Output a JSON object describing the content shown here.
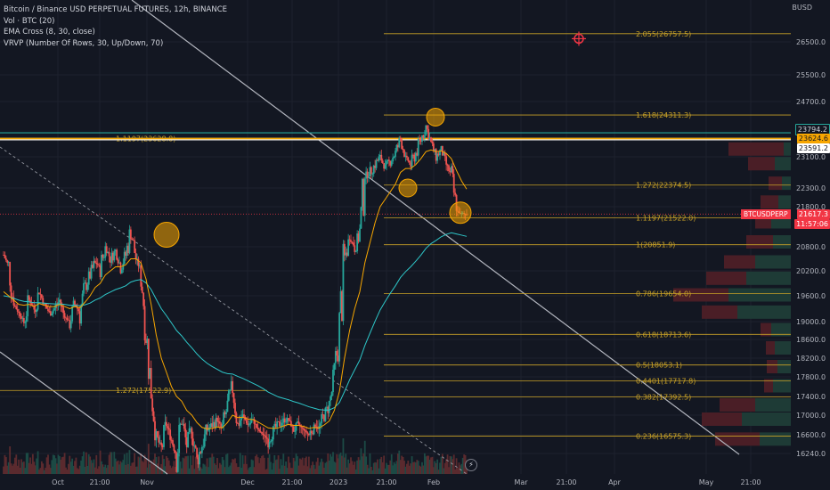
{
  "legend": {
    "title": "Bitcoin / Binance USD PERPETUAL FUTURES, 12h, BINANCE",
    "vol": "Vol · BTC (20)",
    "ema": "EMA Cross (8, 30, close)",
    "vrvp": "VRVP (Number Of Rows, 30, Up/Down, 70)"
  },
  "axis": {
    "unit": "BUSD",
    "y_ticks": [
      "26500.0",
      "25500.0",
      "24700.0",
      "23100.0",
      "22300.0",
      "21800.0",
      "20800.0",
      "20200.0",
      "19600.0",
      "19000.0",
      "18600.0",
      "18200.0",
      "17800.0",
      "17400.0",
      "17000.0",
      "16600.0",
      "16240.0"
    ],
    "x_ticks": [
      "Oct",
      "21:00",
      "Nov",
      "Dec",
      "21:00",
      "2023",
      "21:00",
      "Feb",
      "Mar",
      "21:00",
      "Apr",
      "May",
      "21:00"
    ]
  },
  "price_tags": {
    "top_green": "23794.2",
    "orange": "23624.6",
    "white": "23591.2",
    "symbol": "BTCUSDPERP",
    "last": "21617.3",
    "countdown": "11:57:06"
  },
  "colors": {
    "background": "#131722",
    "up": "#26a69a",
    "down": "#ef5350",
    "fib": "#c9a227",
    "ema_fast": "#f7a600",
    "ema_slow": "#2ec7c9",
    "profile_up": "#1e3b36",
    "profile_down": "#4a1e26"
  },
  "chart_data": {
    "type": "candlestick",
    "symbol": "BTCUSDPERP",
    "timeframe": "12h",
    "ylim": [
      16100,
      27200
    ],
    "fib_levels": [
      {
        "label": "2.055(26757.5)",
        "value": 26757.5
      },
      {
        "label": "1.618(24311.3)",
        "value": 24311.3
      },
      {
        "label": "1.272(22374.5)",
        "value": 22374.5
      },
      {
        "label": "1.1197(21522.0)",
        "value": 21522.0
      },
      {
        "label": "1(20851.9)",
        "value": 20851.9
      },
      {
        "label": "0.786(19654.0)",
        "value": 19654.0
      },
      {
        "label": "0.618(18713.6)",
        "value": 18713.6
      },
      {
        "label": "0.5(18053.1)",
        "value": 18053.1
      },
      {
        "label": "0.4401(17717.8)",
        "value": 17717.8
      },
      {
        "label": "0.382(17392.5)",
        "value": 17392.5
      },
      {
        "label": "0.236(16575.3)",
        "value": 16575.3
      }
    ],
    "left_levels": [
      {
        "label": "1.1197(23628.8)",
        "value": 23628.8
      },
      {
        "label": "1.272(17522.9)",
        "value": 17522.9
      }
    ],
    "horizontal_lines": [
      23794.2,
      23624.6,
      23591.2
    ],
    "last_price": 21617.3,
    "price_path": [
      20600,
      20300,
      19400,
      19200,
      19000,
      19500,
      19300,
      19700,
      19400,
      19200,
      19300,
      19500,
      19100,
      19000,
      19400,
      19200,
      19800,
      20100,
      20400,
      20300,
      20800,
      20500,
      20700,
      20300,
      20600,
      21200,
      20500,
      20200,
      18800,
      17500,
      16600,
      16300,
      16800,
      16500,
      16200,
      16900,
      16400,
      16700,
      16100,
      16400,
      16700,
      16800,
      16900,
      16700,
      17200,
      17600,
      16800,
      17000,
      16800,
      16900,
      16700,
      16600,
      16500,
      16700,
      16800,
      16900,
      16900,
      16700,
      16800,
      16700,
      16600,
      16800,
      16700,
      17000,
      17200,
      17800,
      18800,
      20500,
      21000,
      20800,
      21100,
      22600,
      22700,
      22900,
      23100,
      22800,
      23000,
      23200,
      23600,
      23100,
      22900,
      23200,
      23600,
      24000,
      23500,
      23100,
      23300,
      22900,
      22600,
      21700,
      21600,
      21620
    ],
    "ema_fast": [
      19700,
      19600,
      19500,
      19400,
      19380,
      19400,
      19350,
      19420,
      19380,
      19350,
      19350,
      19400,
      19350,
      19300,
      19350,
      19320,
      19450,
      19600,
      19800,
      19900,
      20100,
      20200,
      20300,
      20300,
      20350,
      20500,
      20500,
      20400,
      20000,
      19400,
      18700,
      18200,
      17900,
      17600,
      17400,
      17300,
      17100,
      17000,
      16850,
      16750,
      16720,
      16730,
      16760,
      16740,
      16850,
      17000,
      16950,
      16960,
      16920,
      16910,
      16860,
      16800,
      16740,
      16730,
      16740,
      16780,
      16810,
      16790,
      16790,
      16770,
      16730,
      16750,
      16740,
      16800,
      16880,
      17100,
      17500,
      18200,
      18800,
      19300,
      19700,
      20400,
      20900,
      21400,
      21800,
      22000,
      22200,
      22400,
      22700,
      22800,
      22800,
      22900,
      23050,
      23250,
      23300,
      23250,
      23270,
      23200,
      23050,
      22750,
      22480,
      22270
    ],
    "ema_slow": [
      19600,
      19580,
      19540,
      19500,
      19470,
      19460,
      19440,
      19440,
      19430,
      19420,
      19410,
      19410,
      19400,
      19380,
      19380,
      19370,
      19390,
      19430,
      19500,
      19550,
      19630,
      19690,
      19750,
      19790,
      19840,
      19930,
      19970,
      19990,
      19910,
      19750,
      19520,
      19300,
      19140,
      18970,
      18800,
      18680,
      18540,
      18420,
      18290,
      18180,
      18090,
      18020,
      17960,
      17900,
      17870,
      17860,
      17810,
      17770,
      17720,
      17670,
      17620,
      17560,
      17490,
      17440,
      17390,
      17360,
      17330,
      17290,
      17260,
      17220,
      17180,
      17150,
      17120,
      17110,
      17110,
      17160,
      17270,
      17500,
      17740,
      17950,
      18160,
      18470,
      18740,
      19010,
      19270,
      19470,
      19660,
      19840,
      20040,
      20180,
      20300,
      20440,
      20590,
      20760,
      20880,
      20960,
      21050,
      21110,
      21150,
      21120,
      21090,
      21060
    ],
    "volume_profile": [
      {
        "price": 23300,
        "up": 8,
        "down": 62
      },
      {
        "price": 22900,
        "up": 18,
        "down": 30
      },
      {
        "price": 22400,
        "up": 10,
        "down": 15
      },
      {
        "price": 21900,
        "up": 14,
        "down": 20
      },
      {
        "price": 21400,
        "up": 22,
        "down": 18
      },
      {
        "price": 20900,
        "up": 20,
        "down": 30
      },
      {
        "price": 20400,
        "up": 40,
        "down": 35
      },
      {
        "price": 20000,
        "up": 50,
        "down": 45
      },
      {
        "price": 19600,
        "up": 70,
        "down": 62
      },
      {
        "price": 19200,
        "up": 60,
        "down": 40
      },
      {
        "price": 18800,
        "up": 22,
        "down": 12
      },
      {
        "price": 18400,
        "up": 18,
        "down": 10
      },
      {
        "price": 18000,
        "up": 15,
        "down": 12
      },
      {
        "price": 17600,
        "up": 20,
        "down": 10
      },
      {
        "price": 17200,
        "up": 40,
        "down": 40
      },
      {
        "price": 16900,
        "up": 55,
        "down": 45
      },
      {
        "price": 16500,
        "up": 35,
        "down": 50
      }
    ]
  }
}
